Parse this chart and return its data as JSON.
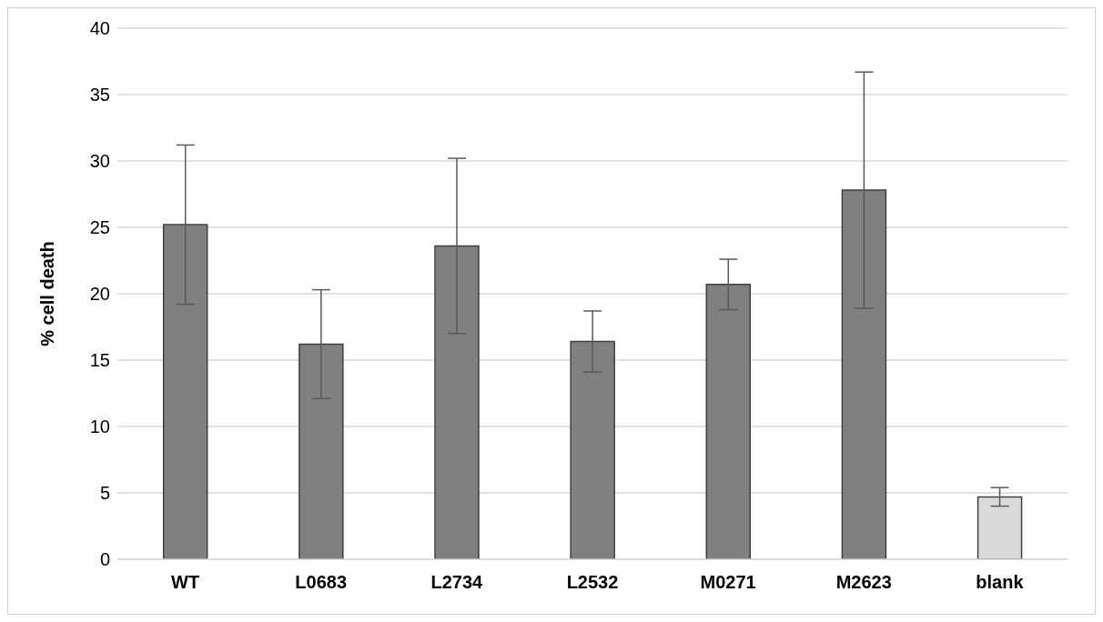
{
  "chart_data": {
    "type": "bar",
    "ylabel": "% cell death",
    "categories": [
      "WT",
      "L0683",
      "L2734",
      "L2532",
      "M0271",
      "M2623",
      "blank"
    ],
    "values": [
      25.2,
      16.2,
      23.6,
      16.4,
      20.7,
      27.8,
      4.7
    ],
    "errors": [
      6.0,
      4.1,
      6.6,
      2.3,
      1.9,
      8.9,
      0.7
    ],
    "colors": [
      "#808080",
      "#808080",
      "#808080",
      "#808080",
      "#808080",
      "#808080",
      "#d9d9d9"
    ],
    "ylim": [
      0,
      40
    ],
    "yticks": [
      0,
      5,
      10,
      15,
      20,
      25,
      30,
      35,
      40
    ],
    "grid": "y",
    "legend": false
  }
}
